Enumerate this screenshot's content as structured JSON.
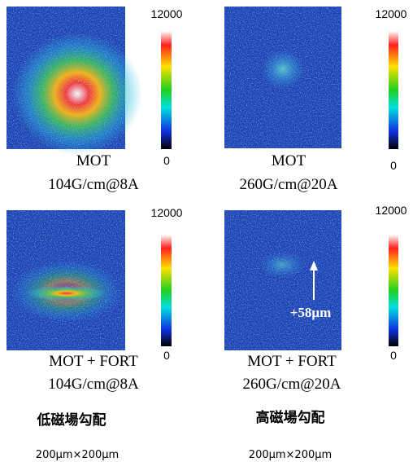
{
  "panels": [
    {
      "lines": [
        "MOT",
        "104G/cm@8A"
      ],
      "colorbar": {
        "max": 12000,
        "min": 0
      }
    },
    {
      "lines": [
        "MOT",
        "260G/cm@20A"
      ],
      "colorbar": {
        "max": 12000,
        "min": 0
      }
    },
    {
      "lines": [
        "MOT + FORT",
        "104G/cm@8A"
      ],
      "colorbar": {
        "max": 12000,
        "min": 0
      }
    },
    {
      "lines": [
        "MOT + FORT",
        "260G/cm@20A"
      ],
      "colorbar": {
        "max": 12000,
        "min": 0
      }
    }
  ],
  "annotation": "+58μm",
  "columns": [
    {
      "label": "低磁場勾配",
      "scale": "200μm×200μm"
    },
    {
      "label": "高磁場勾配",
      "scale": "200μm×200μm"
    }
  ]
}
